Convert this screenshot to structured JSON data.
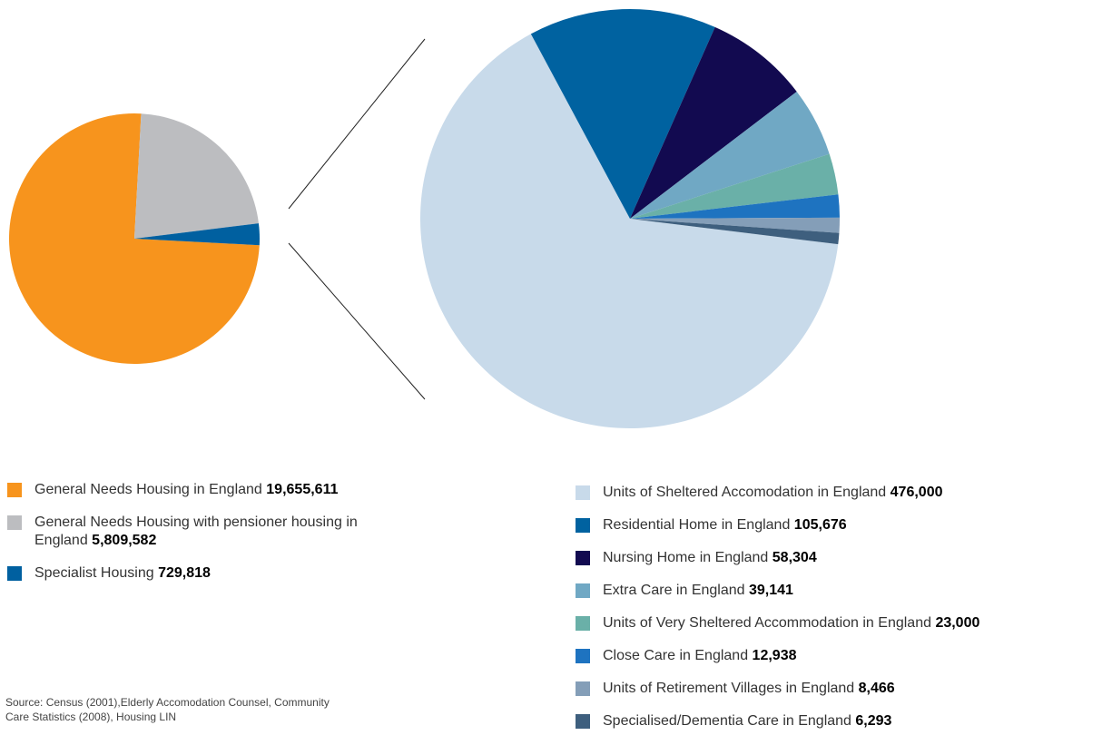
{
  "chart_data": [
    {
      "type": "pie",
      "categories": [
        "General Needs Housing in England",
        "General Needs Housing with pensioner housing in England",
        "Specialist Housing"
      ],
      "values": [
        19655611,
        5809582,
        729818
      ],
      "value_labels": [
        "19,655,611",
        "5,809,582",
        "729,818"
      ],
      "colors": [
        "#f7941d",
        "#bcbdc0",
        "#0060a0"
      ]
    },
    {
      "type": "pie",
      "categories": [
        "Units of Sheltered Accomodation in England",
        "Residential Home in England",
        "Nursing Home in England",
        "Extra Care in England",
        "Units of Very Sheltered Accommodation in England",
        "Close Care in England",
        "Units of Retirement Villages in England",
        "Specialised/Dementia Care in England"
      ],
      "values": [
        476000,
        105676,
        58304,
        39141,
        23000,
        12938,
        8466,
        6293
      ],
      "value_labels": [
        "476,000",
        "105,676",
        "58,304",
        "39,141",
        "23,000",
        "12,938",
        "8,466",
        "6,293"
      ],
      "colors": [
        "#c8daea",
        "#0062a0",
        "#120a50",
        "#70a8c4",
        "#6ab0a8",
        "#1e73c0",
        "#849eb8",
        "#3e5f7e"
      ]
    }
  ],
  "source": "Source: Census (2001),Elderly Accomodation Counsel, Community Care Statistics (2008), Housing LIN"
}
